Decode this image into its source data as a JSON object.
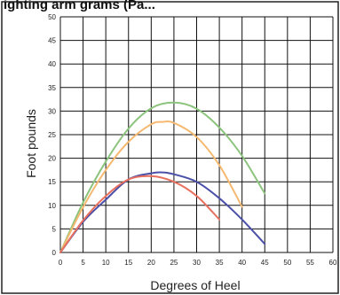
{
  "chart_data": {
    "type": "line",
    "title": "ighting arm grams (Pa...",
    "xlabel": "Degrees of Heel",
    "ylabel": "Foot pounds",
    "xlim": [
      0,
      60
    ],
    "ylim": [
      0,
      50
    ],
    "x_ticks": [
      "0",
      "5",
      "10",
      "15",
      "20",
      "25",
      "30",
      "35",
      "40",
      "45",
      "50",
      "55",
      "60"
    ],
    "y_ticks": [
      "0",
      "5",
      "10",
      "15",
      "20",
      "25",
      "30",
      "35",
      "40",
      "45",
      "50"
    ],
    "grid": true,
    "series": [
      {
        "color": "#8cc47e",
        "x": [
          0,
          5,
          10,
          15,
          20,
          25,
          30,
          35,
          40,
          45
        ],
        "y": [
          0,
          10.6,
          19.3,
          26.3,
          30.6,
          31.8,
          30.5,
          26.5,
          20.5,
          12.5
        ]
      },
      {
        "color": "#f5b971",
        "x": [
          0,
          5,
          10,
          15,
          20,
          22.5,
          25,
          30,
          35,
          40
        ],
        "y": [
          0,
          9.6,
          17.5,
          23.5,
          27.2,
          27.7,
          27.5,
          24.5,
          18.5,
          9.7
        ]
      },
      {
        "color": "#4a4fa7",
        "x": [
          0,
          5,
          10,
          15,
          20,
          22.5,
          25,
          30,
          35,
          40,
          45
        ],
        "y": [
          0,
          6.5,
          11.2,
          15.5,
          16.8,
          17.0,
          16.6,
          15.0,
          11.5,
          7.0,
          1.8
        ]
      },
      {
        "color": "#e8705e",
        "x": [
          0,
          5,
          10,
          15,
          20,
          25,
          30,
          35
        ],
        "y": [
          0,
          6.8,
          12.0,
          15.5,
          16.2,
          15.0,
          12.0,
          7.0
        ]
      }
    ]
  }
}
